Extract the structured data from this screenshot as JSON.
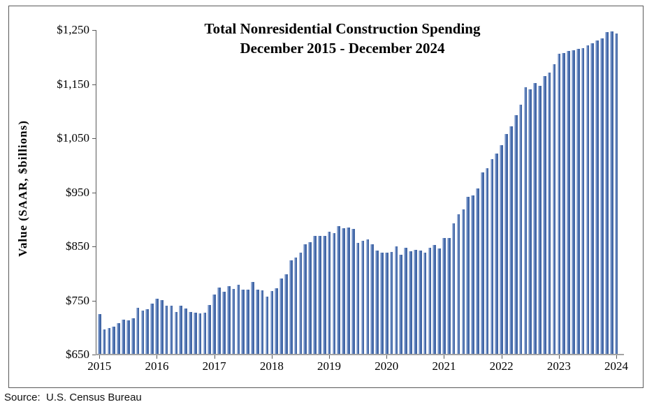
{
  "chart_data": {
    "type": "bar",
    "title_line1": "Total Nonresidential Construction Spending",
    "title_line2": "December 2015 - December 2024",
    "ylabel": "Value (SAAR, $billions)",
    "y_axis": {
      "min": 650,
      "max": 1250,
      "step": 100
    },
    "y_tick_labels": [
      "$1,250",
      "$1,150",
      "$1,050",
      "$950",
      "$850",
      "$750",
      "$650"
    ],
    "x_year_labels": [
      "2015",
      "2016",
      "2017",
      "2018",
      "2019",
      "2020",
      "2021",
      "2022",
      "2023",
      "2024"
    ],
    "frequency": "monthly",
    "x_start": "December 2015",
    "x_end": "December 2024",
    "grid": "off",
    "legend": "none",
    "bar_color": "#3a5f9f",
    "bar_highlight_color": "#aabddf",
    "values": [
      725,
      697,
      699,
      702,
      708,
      714,
      713,
      717,
      737,
      731,
      734,
      744,
      753,
      751,
      740,
      741,
      729,
      740,
      735,
      729,
      727,
      726,
      728,
      742,
      761,
      774,
      766,
      776,
      772,
      779,
      770,
      770,
      784,
      770,
      769,
      757,
      767,
      773,
      791,
      799,
      824,
      829,
      838,
      854,
      858,
      869,
      870,
      870,
      877,
      875,
      887,
      884,
      885,
      882,
      856,
      860,
      863,
      854,
      842,
      839,
      839,
      840,
      850,
      835,
      847,
      841,
      843,
      842,
      839,
      847,
      852,
      846,
      865,
      865,
      893,
      909,
      918,
      942,
      944,
      957,
      987,
      995,
      1011,
      1022,
      1037,
      1058,
      1072,
      1093,
      1112,
      1144,
      1141,
      1152,
      1147,
      1165,
      1171,
      1187,
      1206,
      1208,
      1211,
      1212,
      1215,
      1216,
      1222,
      1226,
      1231,
      1235,
      1246,
      1248,
      1244
    ]
  },
  "source": {
    "label": "Source:  U.S. Census Bureau"
  }
}
